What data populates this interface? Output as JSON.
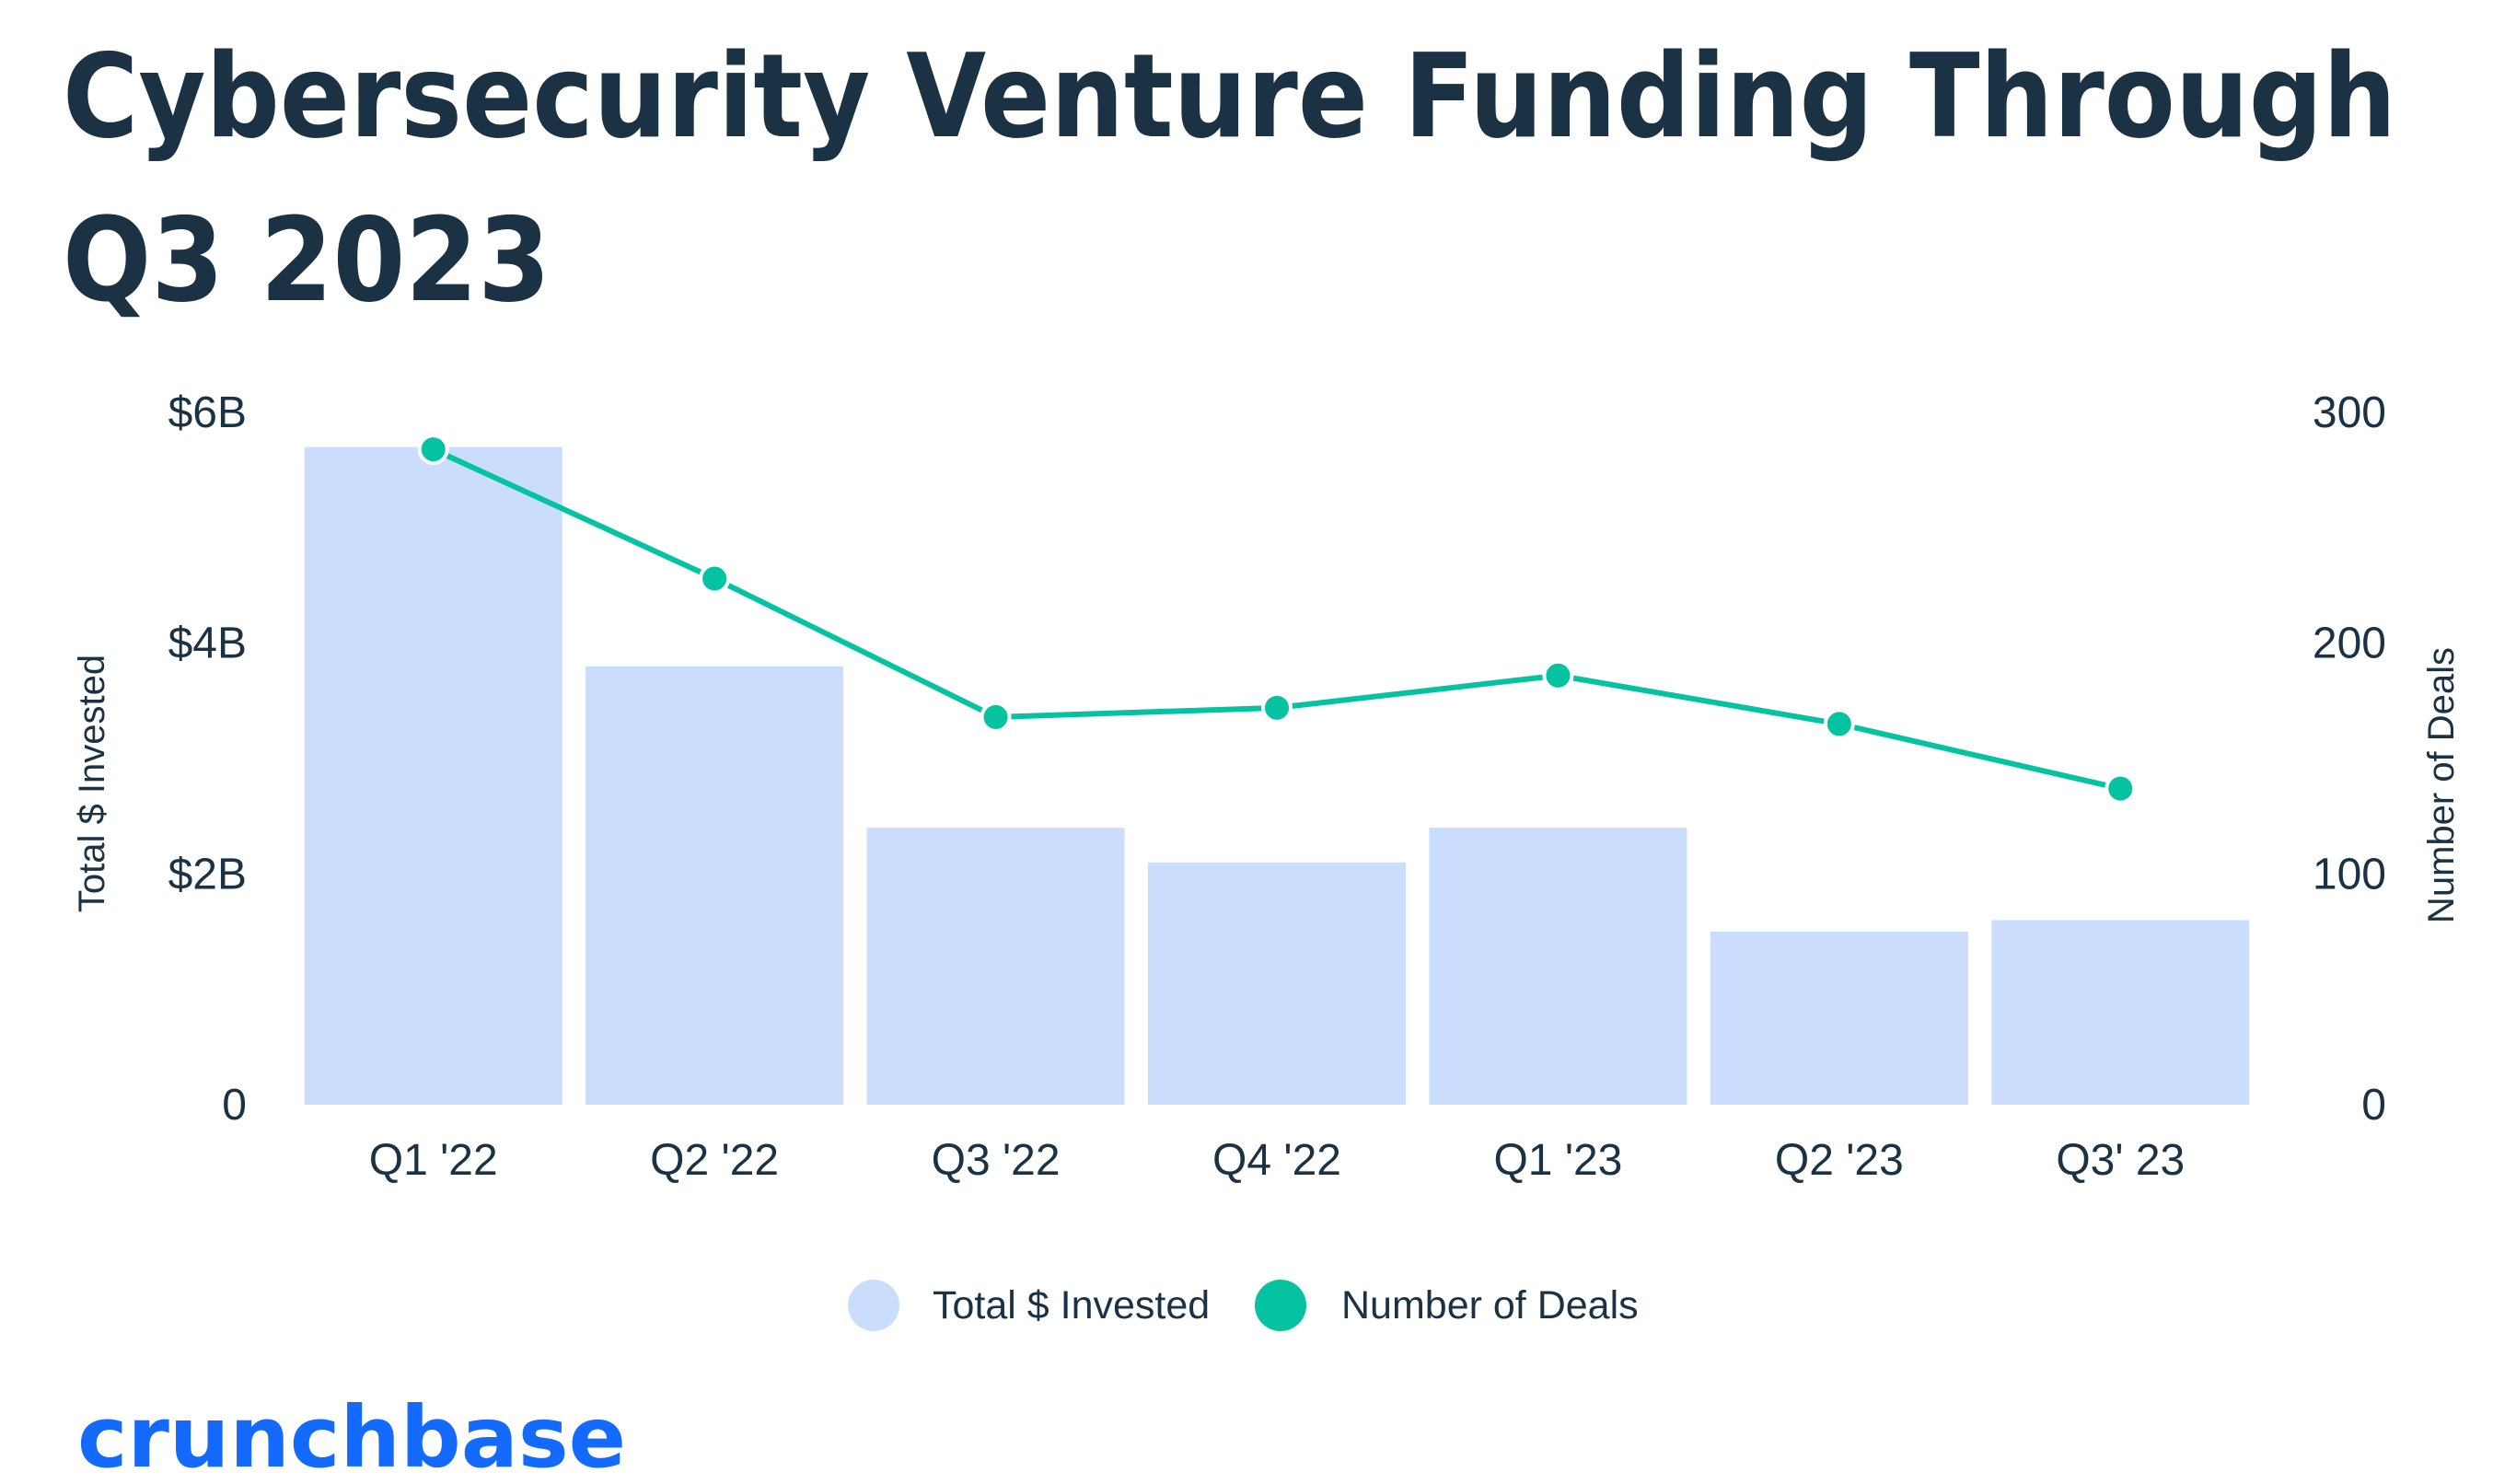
{
  "chart_data": {
    "type": "bar",
    "title_lines": [
      "Cybersecurity Venture Funding Through",
      "Q3 2023"
    ],
    "categories": [
      "Q1 '22",
      "Q2 '22",
      "Q3 '22",
      "Q4 '22",
      "Q1 '23",
      "Q2 '23",
      "Q3' 23"
    ],
    "ylabel_left": "Total $ Invested",
    "ylabel_right": "Number of Deals",
    "y_left_ticks": [
      {
        "value": 0,
        "label": "0"
      },
      {
        "value": 2,
        "label": "$2B"
      },
      {
        "value": 4,
        "label": "$4B"
      },
      {
        "value": 6,
        "label": "$6B"
      }
    ],
    "y_right_ticks": [
      {
        "value": 0,
        "label": "0"
      },
      {
        "value": 100,
        "label": "100"
      },
      {
        "value": 200,
        "label": "200"
      },
      {
        "value": 300,
        "label": "300"
      }
    ],
    "ylim_left": [
      0,
      6
    ],
    "ylim_right": [
      0,
      300
    ],
    "grid": false,
    "legend_position": "bottom-center",
    "series": [
      {
        "name": "Total $ Invested",
        "type": "bar",
        "axis": "left",
        "unit": "billion USD",
        "color": "#cbddfd",
        "values": [
          5.7,
          3.8,
          2.4,
          2.1,
          2.4,
          1.5,
          1.6
        ]
      },
      {
        "name": "Number of Deals",
        "type": "line",
        "axis": "right",
        "color": "#05c3a0",
        "values": [
          284,
          228,
          168,
          172,
          186,
          165,
          137
        ]
      }
    ]
  },
  "brand": {
    "name": "crunchbase",
    "color": "#146aff"
  },
  "colors": {
    "text": "#1b3144"
  }
}
